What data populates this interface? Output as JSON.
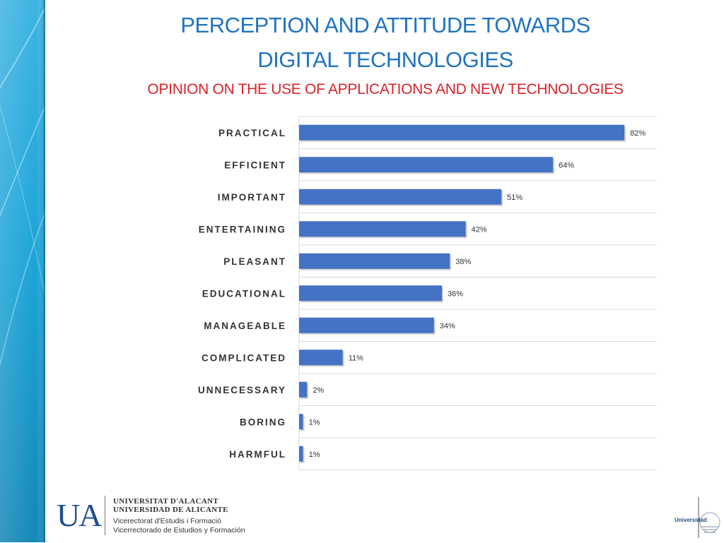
{
  "header": {
    "title_line1": "PERCEPTION AND ATTITUDE TOWARDS",
    "title_line2": "DIGITAL TECHNOLOGIES",
    "subtitle": "OPINION ON THE USE OF APPLICATIONS AND NEW TECHNOLOGIES"
  },
  "colors": {
    "title": "#1f73c2",
    "subtitle": "#d8232a",
    "bar": "#4472c4",
    "side_band": "#1aa3d6"
  },
  "chart_data": {
    "type": "bar",
    "orientation": "horizontal",
    "title": "OPINION ON THE USE OF APPLICATIONS AND NEW TECHNOLOGIES",
    "categories": [
      "PRACTICAL",
      "EFFICIENT",
      "IMPORTANT",
      "ENTERTAINING",
      "PLEASANT",
      "EDUCATIONAL",
      "MANAGEABLE",
      "COMPLICATED",
      "UNNECESSARY",
      "BORING",
      "HARMFUL"
    ],
    "values": [
      82,
      64,
      51,
      42,
      38,
      36,
      34,
      11,
      2,
      1,
      1
    ],
    "value_labels": [
      "82%",
      "64%",
      "51%",
      "42%",
      "38%",
      "36%",
      "34%",
      "11%",
      "2%",
      "1%",
      "1%"
    ],
    "xlim": [
      0,
      90
    ],
    "unit": "%",
    "grid": "horizontal row separators",
    "legend": "none"
  },
  "footer": {
    "logo_mark": "UA",
    "university_name_1": "UNIVERSITAT D'ALACANT",
    "university_name_2": "UNIVERSIDAD DE ALICANTE",
    "vice_rectorate_1": "Vicerectorat d'Estudis i Formació",
    "vice_rectorate_2": "Vicerrectorado de Estudios y Formación",
    "emblem_text": "Universidad"
  }
}
